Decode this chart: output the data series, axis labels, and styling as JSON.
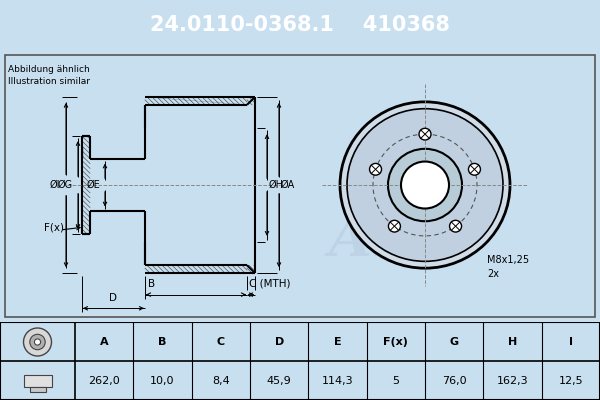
{
  "part_number": "24.0110-0368.1",
  "ref_number": "410368",
  "title_bg_color": "#0000cc",
  "title_text_color": "#ffffff",
  "main_bg_color": "#c8dff0",
  "diagram_bg_color": "#c8dff0",
  "table_bg": "#ffffff",
  "note_text": "Abbildung ähnlich\nIllustration similar",
  "thread_note": "M8x1,25\n2x",
  "columns": [
    "A",
    "B",
    "C",
    "D",
    "E",
    "F(x)",
    "G",
    "H",
    "I"
  ],
  "values": [
    "262,0",
    "10,0",
    "8,4",
    "45,9",
    "114,3",
    "5",
    "76,0",
    "162,3",
    "12,5"
  ],
  "line_color": "#000000",
  "dim_color": "#000000",
  "hatch_color": "#444444",
  "watermark_color": "#b8cce0",
  "crosshair_color": "#888888",
  "table_line_color": "#000000"
}
